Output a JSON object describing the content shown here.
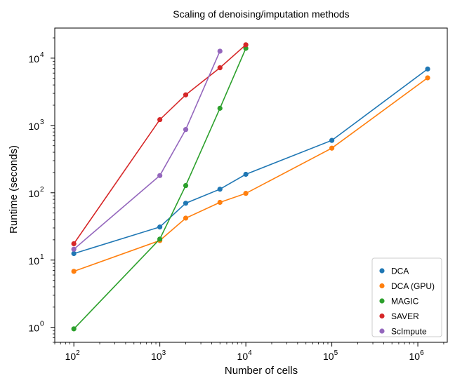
{
  "chart_data": {
    "type": "line",
    "title": "Scaling of denoising/imputation methods",
    "xlabel": "Number of cells",
    "ylabel": "Runtime (seconds)",
    "xscale": "log",
    "yscale": "log",
    "xlim": [
      60,
      2200000
    ],
    "ylim": [
      0.6,
      28000
    ],
    "x_ticks": [
      {
        "value": 100,
        "base": "10",
        "exp": "2"
      },
      {
        "value": 1000,
        "base": "10",
        "exp": "3"
      },
      {
        "value": 10000,
        "base": "10",
        "exp": "4"
      },
      {
        "value": 100000,
        "base": "10",
        "exp": "5"
      },
      {
        "value": 1000000,
        "base": "10",
        "exp": "6"
      }
    ],
    "y_ticks": [
      {
        "value": 1,
        "base": "10",
        "exp": "0"
      },
      {
        "value": 10,
        "base": "10",
        "exp": "1"
      },
      {
        "value": 100,
        "base": "10",
        "exp": "2"
      },
      {
        "value": 1000,
        "base": "10",
        "exp": "3"
      },
      {
        "value": 10000,
        "base": "10",
        "exp": "4"
      }
    ],
    "grid": false,
    "legend_position": "bottom-right",
    "series": [
      {
        "name": "DCA",
        "color": "#1f77b4",
        "x": [
          100,
          1000,
          2000,
          5000,
          10000,
          100000,
          1300000
        ],
        "y": [
          12.5,
          31,
          70,
          113,
          188,
          600,
          6900
        ]
      },
      {
        "name": "DCA (GPU)",
        "color": "#ff7f0e",
        "x": [
          100,
          1000,
          2000,
          5000,
          10000,
          100000,
          1300000
        ],
        "y": [
          6.8,
          19.5,
          42,
          72,
          98,
          460,
          5100
        ]
      },
      {
        "name": "MAGIC",
        "color": "#2ca02c",
        "x": [
          100,
          1000,
          2000,
          5000,
          10000
        ],
        "y": [
          0.95,
          20.5,
          128,
          1800,
          14000
        ]
      },
      {
        "name": "SAVER",
        "color": "#d62728",
        "x": [
          100,
          1000,
          2000,
          5000,
          10000
        ],
        "y": [
          17.5,
          1220,
          2850,
          7200,
          15800
        ]
      },
      {
        "name": "ScImpute",
        "color": "#9467bd",
        "x": [
          100,
          1000,
          2000,
          5000
        ],
        "y": [
          14.5,
          180,
          870,
          12700
        ]
      }
    ]
  }
}
